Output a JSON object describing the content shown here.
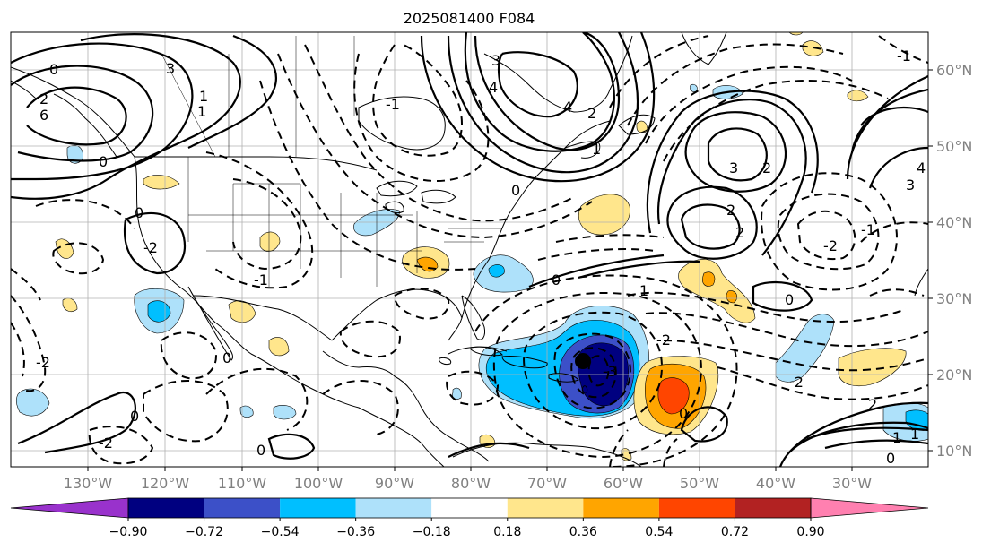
{
  "title": "2025081400 F084",
  "lon_labels": [
    "130°W",
    "120°W",
    "110°W",
    "100°W",
    "90°W",
    "80°W",
    "70°W",
    "60°W",
    "50°W",
    "40°W",
    "30°W"
  ],
  "lat_labels": [
    "60°N",
    "50°N",
    "40°N",
    "30°N",
    "20°N",
    "10°N"
  ],
  "colorbar": {
    "ticks": [
      "−0.90",
      "−0.72",
      "−0.54",
      "−0.36",
      "−0.18",
      "0.18",
      "0.36",
      "0.54",
      "0.72",
      "0.90"
    ],
    "colors": [
      "#9932cc",
      "#000080",
      "#3c50c8",
      "#00bfff",
      "#aee1fa",
      "#ffffff",
      "#ffe68c",
      "#ffa500",
      "#ff4500",
      "#b22222",
      "#ff80b0"
    ]
  },
  "contour_labels": [
    "0",
    "3",
    "1",
    "0",
    "2",
    "6",
    "4",
    "3",
    "2",
    "4",
    "1",
    "0",
    "-1",
    "-2",
    "0",
    "2",
    "3",
    "-1",
    "-1",
    "1",
    "1",
    "0",
    "0",
    "0",
    "0",
    "-2",
    "-3",
    "2",
    "-2",
    "2",
    "4",
    "3",
    "-1",
    "-2",
    "-2",
    "0",
    "-2",
    "0",
    "2",
    "1",
    "0",
    "1"
  ]
}
